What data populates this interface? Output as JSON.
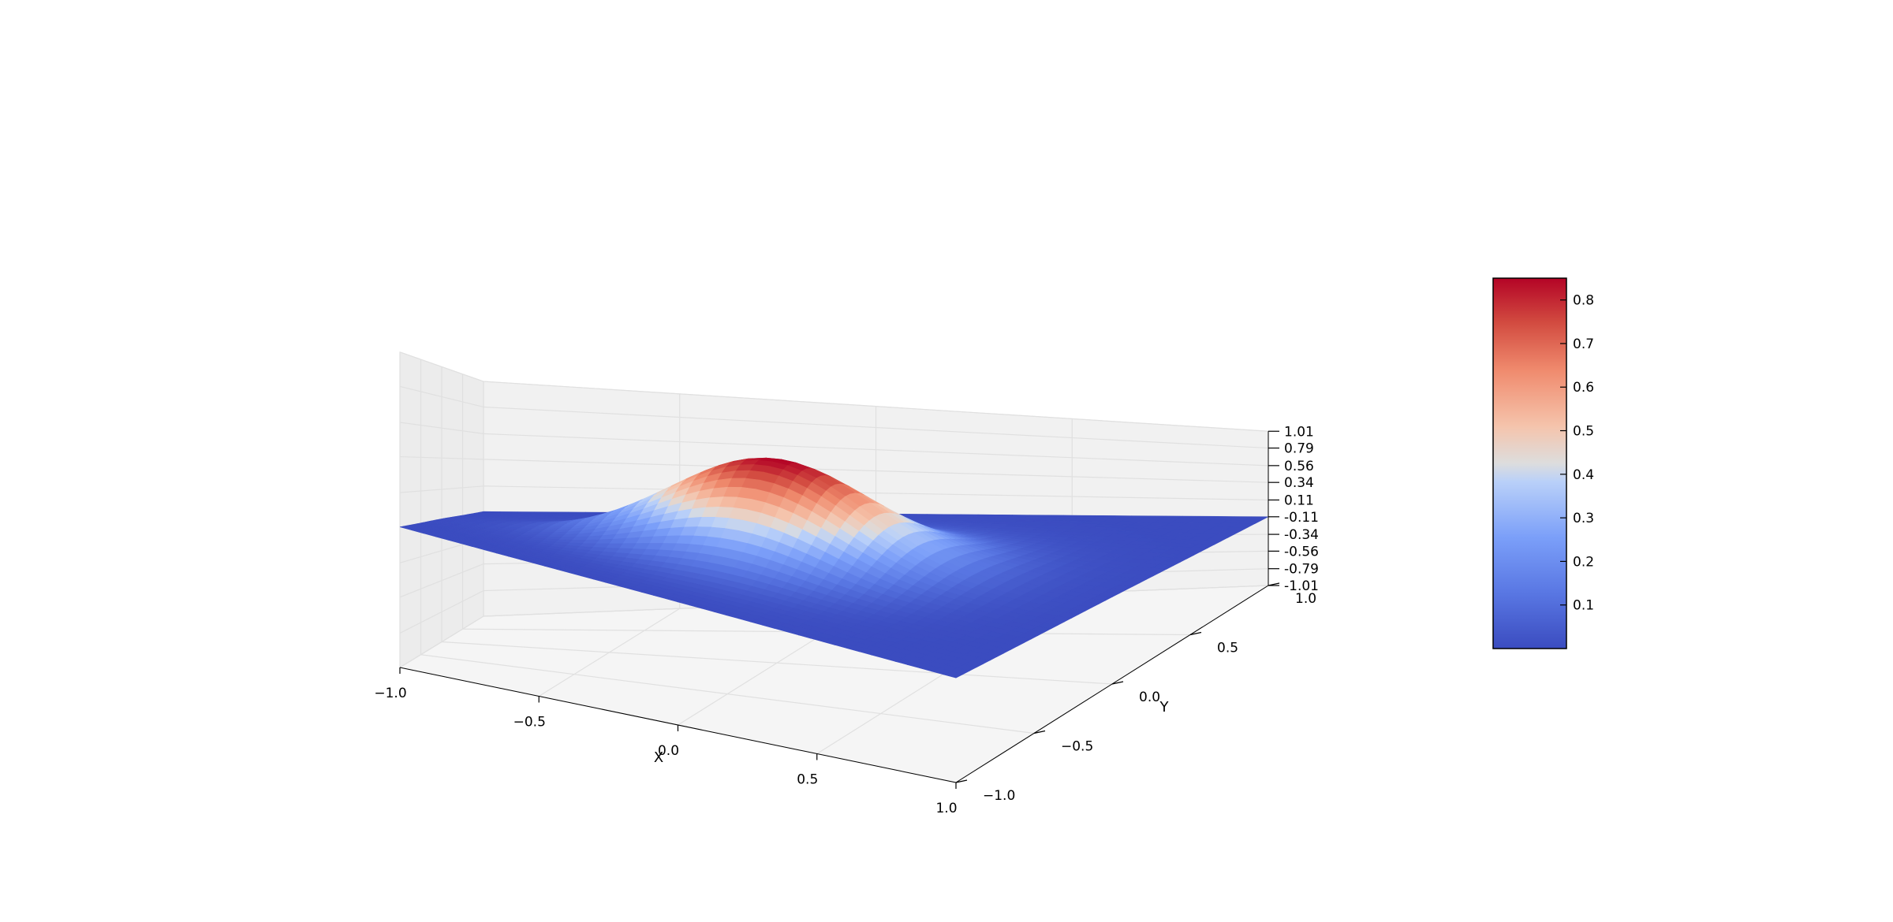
{
  "chart_data": {
    "type": "surface3d",
    "title": "",
    "xlabel": "X",
    "ylabel": "Y",
    "zlabel": "",
    "xlim": [
      -1.0,
      1.0
    ],
    "ylim": [
      -1.0,
      1.0
    ],
    "zlim": [
      -1.01,
      1.01
    ],
    "grid": true,
    "x_ticks": [
      "−1.0",
      "−0.5",
      "0.0",
      "0.5",
      "1.0"
    ],
    "y_ticks": [
      "−1.0",
      "−0.5",
      "0.0",
      "0.5",
      "1.0"
    ],
    "z_ticks": [
      "-1.01",
      "-0.79",
      "-0.56",
      "-0.34",
      "-0.11",
      "0.11",
      "0.34",
      "0.56",
      "0.79",
      "1.01"
    ],
    "surface": {
      "z_offset": -0.11,
      "peak_value": 0.85,
      "peak_location": [
        0.0,
        0.0
      ],
      "description": "smooth single-peaked bump centered at the origin, flat near zero at the edges"
    },
    "colormap": {
      "name": "coolwarm",
      "low_color": "#3b4cc0",
      "mid_color": "#dddddd",
      "high_color": "#b40426"
    },
    "colorbar": {
      "range": [
        0.0,
        0.85
      ],
      "ticks": [
        "0.1",
        "0.2",
        "0.3",
        "0.4",
        "0.5",
        "0.6",
        "0.7",
        "0.8"
      ]
    }
  }
}
